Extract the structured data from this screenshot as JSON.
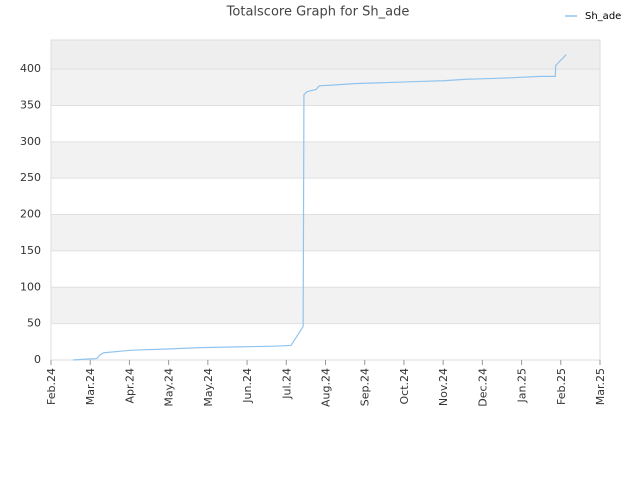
{
  "chart_data": {
    "type": "line",
    "title": "Totalscore Graph for Sh_ade",
    "x": [
      0.56,
      0.84,
      1.17,
      1.25,
      1.35,
      1.56,
      1.94,
      2.3,
      2.9,
      3.8,
      4.74,
      5.66,
      6.12,
      6.43,
      6.45,
      6.53,
      6.76,
      6.84,
      7.17,
      7.73,
      8.32,
      8.85,
      9.41,
      10.0,
      10.59,
      11.2,
      11.73,
      12.47,
      12.86,
      12.87,
      13.14
    ],
    "series": [
      {
        "name": "Sh_ade",
        "color": "#90c4f0",
        "values": [
          0,
          1,
          2,
          7,
          10,
          11,
          13,
          14,
          15,
          17,
          18,
          19,
          20,
          46,
          365,
          369,
          372,
          377,
          378,
          380,
          381,
          382,
          383,
          384,
          386,
          387,
          388,
          390,
          390,
          405,
          420
        ]
      }
    ],
    "xlim": [
      0,
      14
    ],
    "xticks": [
      {
        "value": 0,
        "label": "Feb.24"
      },
      {
        "value": 1,
        "label": "Mar.24"
      },
      {
        "value": 2,
        "label": "Apr.24"
      },
      {
        "value": 3,
        "label": "May.24"
      },
      {
        "value": 4,
        "label": "May.24"
      },
      {
        "value": 5,
        "label": "Jun.24"
      },
      {
        "value": 6,
        "label": "Jul.24"
      },
      {
        "value": 7,
        "label": "Aug.24"
      },
      {
        "value": 8,
        "label": "Sep.24"
      },
      {
        "value": 9,
        "label": "Oct.24"
      },
      {
        "value": 10,
        "label": "Nov.24"
      },
      {
        "value": 11,
        "label": "Dec.24"
      },
      {
        "value": 12,
        "label": "Jan.25"
      },
      {
        "value": 13,
        "label": "Feb.25"
      },
      {
        "value": 14,
        "label": "Mar.25"
      }
    ],
    "ylim": [
      0,
      440
    ],
    "yticks": [
      0,
      50,
      100,
      150,
      200,
      250,
      300,
      350,
      400
    ],
    "grid": true,
    "legend": "top-right"
  }
}
